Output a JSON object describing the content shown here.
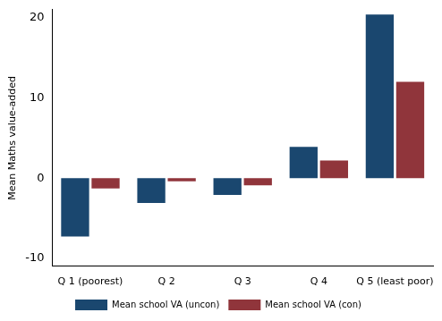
{
  "chart_data": {
    "type": "bar",
    "y_label": "Mean Maths value-added",
    "categories": [
      "Q 1 (poorest)",
      "Q 2",
      "Q 3",
      "Q 4",
      "Q 5 (least poor)"
    ],
    "series": [
      {
        "name": "Mean school VA (uncon)",
        "color": "#1a476f",
        "values": [
          -7.3,
          -3.1,
          -2.1,
          3.9,
          20.4
        ]
      },
      {
        "name": "Mean school VA (con)",
        "color": "#90353b",
        "values": [
          -1.3,
          -0.4,
          -0.9,
          2.2,
          12.0
        ]
      }
    ],
    "ylim": [
      -11,
      21
    ],
    "yticks": [
      -10,
      0,
      10,
      20
    ],
    "grid": false,
    "legend": "bottom"
  }
}
